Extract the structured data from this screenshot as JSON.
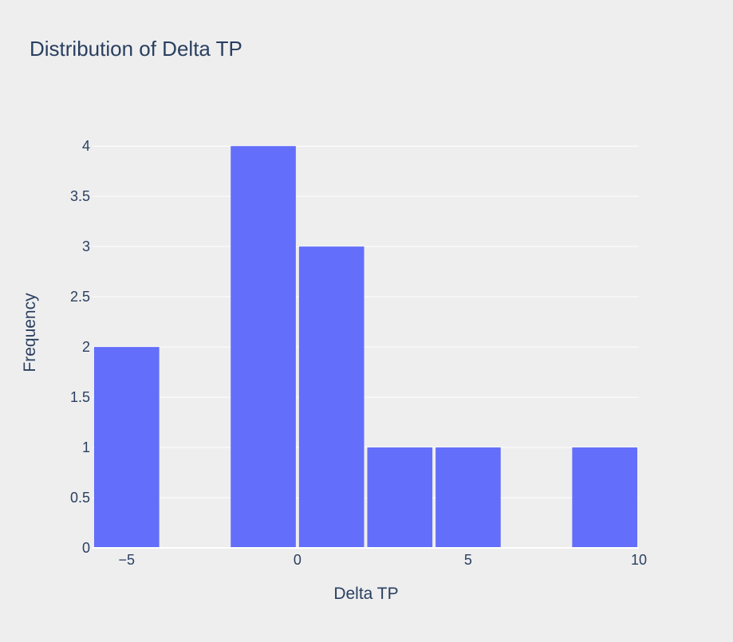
{
  "chart_data": {
    "type": "bar",
    "title": "Distribution of Delta TP",
    "xlabel": "Delta TP",
    "ylabel": "Frequency",
    "xlim": [
      -6,
      10
    ],
    "ylim": [
      0,
      4.2
    ],
    "bin_width": 2,
    "bins": [
      {
        "start": -6,
        "end": -4,
        "count": 2
      },
      {
        "start": -2,
        "end": 0,
        "count": 4
      },
      {
        "start": 0,
        "end": 2,
        "count": 3
      },
      {
        "start": 2,
        "end": 4,
        "count": 1
      },
      {
        "start": 4,
        "end": 6,
        "count": 1
      },
      {
        "start": 8,
        "end": 10,
        "count": 1
      }
    ],
    "x_ticks": [
      {
        "value": -5,
        "label": "−5"
      },
      {
        "value": 0,
        "label": "0"
      },
      {
        "value": 5,
        "label": "5"
      },
      {
        "value": 10,
        "label": "10"
      }
    ],
    "y_ticks": [
      {
        "value": 0,
        "label": "0"
      },
      {
        "value": 0.5,
        "label": "0.5"
      },
      {
        "value": 1,
        "label": "1"
      },
      {
        "value": 1.5,
        "label": "1.5"
      },
      {
        "value": 2,
        "label": "2"
      },
      {
        "value": 2.5,
        "label": "2.5"
      },
      {
        "value": 3,
        "label": "3"
      },
      {
        "value": 3.5,
        "label": "3.5"
      },
      {
        "value": 4,
        "label": "4"
      }
    ],
    "grid": true,
    "bar_color": "#636efa",
    "background_color": "#eeeeef",
    "grid_color": "#ffffff",
    "text_color": "#2a3f5f"
  }
}
